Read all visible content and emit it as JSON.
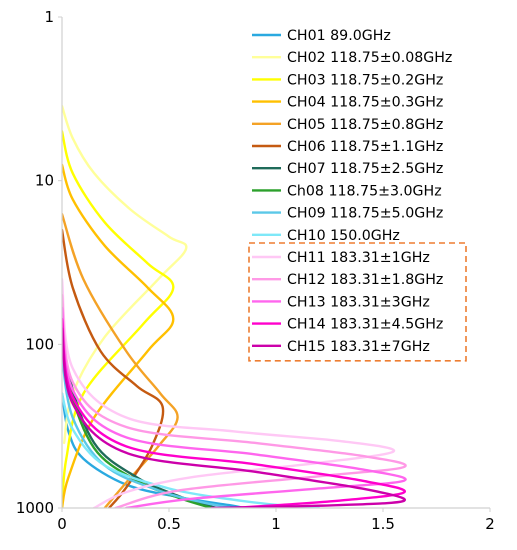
{
  "chart_data": {
    "type": "line",
    "title": "",
    "xlabel": "",
    "ylabel": "",
    "xlim": [
      0,
      2
    ],
    "ylim": [
      1,
      1000
    ],
    "y_scale": "log",
    "y_inverted": true,
    "x_ticks": [
      {
        "value": 0,
        "label": "0"
      },
      {
        "value": 0.5,
        "label": "0.5"
      },
      {
        "value": 1,
        "label": "1"
      },
      {
        "value": 1.5,
        "label": "1.5"
      },
      {
        "value": 2,
        "label": "2"
      }
    ],
    "y_ticks": [
      {
        "value": 1,
        "label": "1"
      },
      {
        "value": 10,
        "label": "10"
      },
      {
        "value": 100,
        "label": "100"
      },
      {
        "value": 1000,
        "label": "1000"
      }
    ],
    "grid": false,
    "legend_position": "top-right",
    "highlight_box_color": "#ed7d31",
    "highlighted_series": [
      "CH11 183.31±1GHz",
      "CH12 183.31±1.8GHz",
      "CH13 183.31±3GHz",
      "CH14 183.31±4.5GHz",
      "CH15 183.31±7GHz"
    ],
    "series": [
      {
        "name": "CH01 89.0GHz",
        "color": "#2aa9e0",
        "peak_x": 0.85,
        "peak_y": 1000,
        "x": [
          0,
          0.03,
          0.1,
          0.3,
          0.55,
          0.78,
          0.85
        ],
        "y": [
          200,
          340,
          500,
          720,
          860,
          960,
          1000
        ]
      },
      {
        "name": "CH02 118.75±0.08GHz",
        "color": "#ffff99",
        "peak_x": 0.58,
        "peak_y": 26,
        "x": [
          0,
          0.05,
          0.15,
          0.32,
          0.5,
          0.58,
          0.45,
          0.2,
          0.05,
          0.01
        ],
        "y": [
          3.5,
          5.5,
          9,
          15,
          22,
          26,
          40,
          90,
          200,
          400
        ]
      },
      {
        "name": "CH03 118.75±0.2GHz",
        "color": "#ffff00",
        "peak_x": 0.52,
        "peak_y": 45,
        "x": [
          0,
          0.05,
          0.2,
          0.4,
          0.52,
          0.38,
          0.1,
          0.02,
          0
        ],
        "y": [
          5,
          9,
          18,
          32,
          45,
          75,
          200,
          500,
          1000
        ]
      },
      {
        "name": "CH04 118.75±0.3GHz",
        "color": "#ffc000",
        "peak_x": 0.52,
        "peak_y": 70,
        "x": [
          0,
          0.05,
          0.2,
          0.4,
          0.52,
          0.4,
          0.15,
          0.03,
          0
        ],
        "y": [
          8,
          13,
          25,
          45,
          70,
          110,
          280,
          650,
          1000
        ]
      },
      {
        "name": "CH05 118.75±0.8GHz",
        "color": "#f4a226",
        "peak_x": 0.54,
        "peak_y": 280,
        "x": [
          0,
          0.1,
          0.3,
          0.46,
          0.54,
          0.45,
          0.3,
          0.2
        ],
        "y": [
          16,
          40,
          110,
          200,
          280,
          420,
          700,
          1000
        ]
      },
      {
        "name": "CH06 118.75±1.1GHz",
        "color": "#c55a11",
        "peak_x": 0.47,
        "peak_y": 240,
        "x": [
          0,
          0.05,
          0.18,
          0.35,
          0.47,
          0.42,
          0.3,
          0.22
        ],
        "y": [
          20,
          45,
          110,
          180,
          240,
          420,
          750,
          1000
        ]
      },
      {
        "name": "CH07 118.75±2.5GHz",
        "color": "#1f6b5a",
        "peak_x": 0.72,
        "peak_y": 1000,
        "x": [
          0,
          0.03,
          0.15,
          0.35,
          0.55,
          0.72
        ],
        "y": [
          60,
          150,
          400,
          650,
          850,
          1000
        ]
      },
      {
        "name": "Ch08 118.75±3.0GHz",
        "color": "#2ca02c",
        "peak_x": 0.7,
        "peak_y": 1000,
        "x": [
          0,
          0.03,
          0.15,
          0.35,
          0.55,
          0.7
        ],
        "y": [
          70,
          170,
          430,
          680,
          870,
          1000
        ]
      },
      {
        "name": "CH09 118.75±5.0GHz",
        "color": "#5bc8e8",
        "peak_x": 0.8,
        "peak_y": 1000,
        "x": [
          0,
          0.05,
          0.2,
          0.45,
          0.65,
          0.8
        ],
        "y": [
          120,
          280,
          550,
          780,
          920,
          1000
        ]
      },
      {
        "name": "CH10 150.0GHz",
        "color": "#7ee8f8",
        "peak_x": 1.2,
        "peak_y": 1000,
        "x": [
          0,
          0.05,
          0.2,
          0.5,
          0.8,
          1.05,
          1.2
        ],
        "y": [
          200,
          330,
          550,
          760,
          890,
          970,
          1000
        ]
      },
      {
        "name": "CH11 183.31±1GHz",
        "color": "#ffc8f5",
        "peak_x": 1.55,
        "peak_y": 450,
        "x": [
          0,
          0.05,
          0.3,
          0.8,
          1.3,
          1.55,
          1.2,
          0.6,
          0.3,
          0.15
        ],
        "y": [
          40,
          140,
          280,
          340,
          390,
          450,
          530,
          650,
          800,
          1000
        ]
      },
      {
        "name": "CH12 183.31±1.8GHz",
        "color": "#ff99e6",
        "peak_x": 1.6,
        "peak_y": 560,
        "x": [
          0,
          0.05,
          0.3,
          0.9,
          1.4,
          1.6,
          1.2,
          0.55,
          0.25
        ],
        "y": [
          50,
          170,
          320,
          400,
          480,
          560,
          640,
          780,
          1000
        ]
      },
      {
        "name": "CH13 183.31±3GHz",
        "color": "#ff66ee",
        "peak_x": 1.6,
        "peak_y": 680,
        "x": [
          0,
          0.05,
          0.3,
          0.9,
          1.4,
          1.6,
          1.2,
          0.6,
          0.3
        ],
        "y": [
          60,
          190,
          370,
          470,
          580,
          680,
          760,
          880,
          1000
        ]
      },
      {
        "name": "CH14 183.31±4.5GHz",
        "color": "#ff00cc",
        "peak_x": 1.6,
        "peak_y": 800,
        "x": [
          0,
          0.05,
          0.3,
          0.9,
          1.4,
          1.6,
          1.3,
          0.8
        ],
        "y": [
          70,
          210,
          420,
          540,
          680,
          800,
          900,
          1000
        ]
      },
      {
        "name": "CH15 183.31±7GHz",
        "color": "#cc00aa",
        "peak_x": 1.6,
        "peak_y": 900,
        "x": [
          0,
          0.05,
          0.3,
          0.9,
          1.4,
          1.6,
          1.3,
          0.7
        ],
        "y": [
          80,
          230,
          460,
          600,
          760,
          900,
          960,
          1000
        ]
      }
    ]
  }
}
